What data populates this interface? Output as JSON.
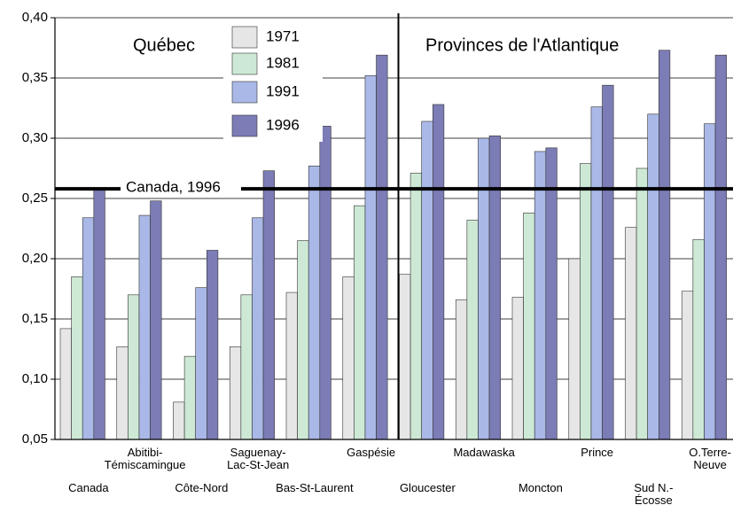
{
  "chart_data": {
    "type": "bar",
    "categories": [
      "Canada",
      "Abitibi-\nTémiscamingue",
      "Côte-Nord",
      "Saguenay-\nLac-St-Jean",
      "Bas-St-Laurent",
      "Gaspésie",
      "Gloucester",
      "Madawaska",
      "Moncton",
      "Prince",
      "Sud N.-\nÉcosse",
      "O.Terre-\nNeuve"
    ],
    "series": [
      {
        "name": "1971",
        "color": "#e6e6e6",
        "values": [
          0.142,
          0.127,
          0.081,
          0.127,
          0.172,
          0.185,
          0.187,
          0.166,
          0.168,
          0.2,
          0.226,
          0.173
        ]
      },
      {
        "name": "1981",
        "color": "#cde9d5",
        "values": [
          0.185,
          0.17,
          0.119,
          0.17,
          0.215,
          0.244,
          0.271,
          0.232,
          0.238,
          0.279,
          0.275,
          0.216
        ]
      },
      {
        "name": "1991",
        "color": "#a9b8e6",
        "values": [
          0.234,
          0.236,
          0.176,
          0.234,
          0.277,
          0.352,
          0.314,
          0.3,
          0.289,
          0.326,
          0.32,
          0.312
        ]
      },
      {
        "name": "1996",
        "color": "#7c7cb6",
        "values": [
          0.258,
          0.248,
          0.207,
          0.273,
          0.31,
          0.369,
          0.328,
          0.302,
          0.292,
          0.344,
          0.373,
          0.369
        ]
      }
    ],
    "ylim": [
      0.05,
      0.4
    ],
    "yticks": [
      {
        "value": 0.05,
        "label": "0,05"
      },
      {
        "value": 0.1,
        "label": "0,10"
      },
      {
        "value": 0.15,
        "label": "0,15"
      },
      {
        "value": 0.2,
        "label": "0,20"
      },
      {
        "value": 0.25,
        "label": "0,25"
      },
      {
        "value": 0.3,
        "label": "0,30"
      },
      {
        "value": 0.35,
        "label": "0,35"
      },
      {
        "value": 0.4,
        "label": "0,40"
      }
    ],
    "grid": true,
    "reference_line": {
      "label": "Canada, 1996",
      "value": 0.258
    },
    "regions": [
      "Québec",
      "Provinces de l'Atlantique"
    ]
  }
}
